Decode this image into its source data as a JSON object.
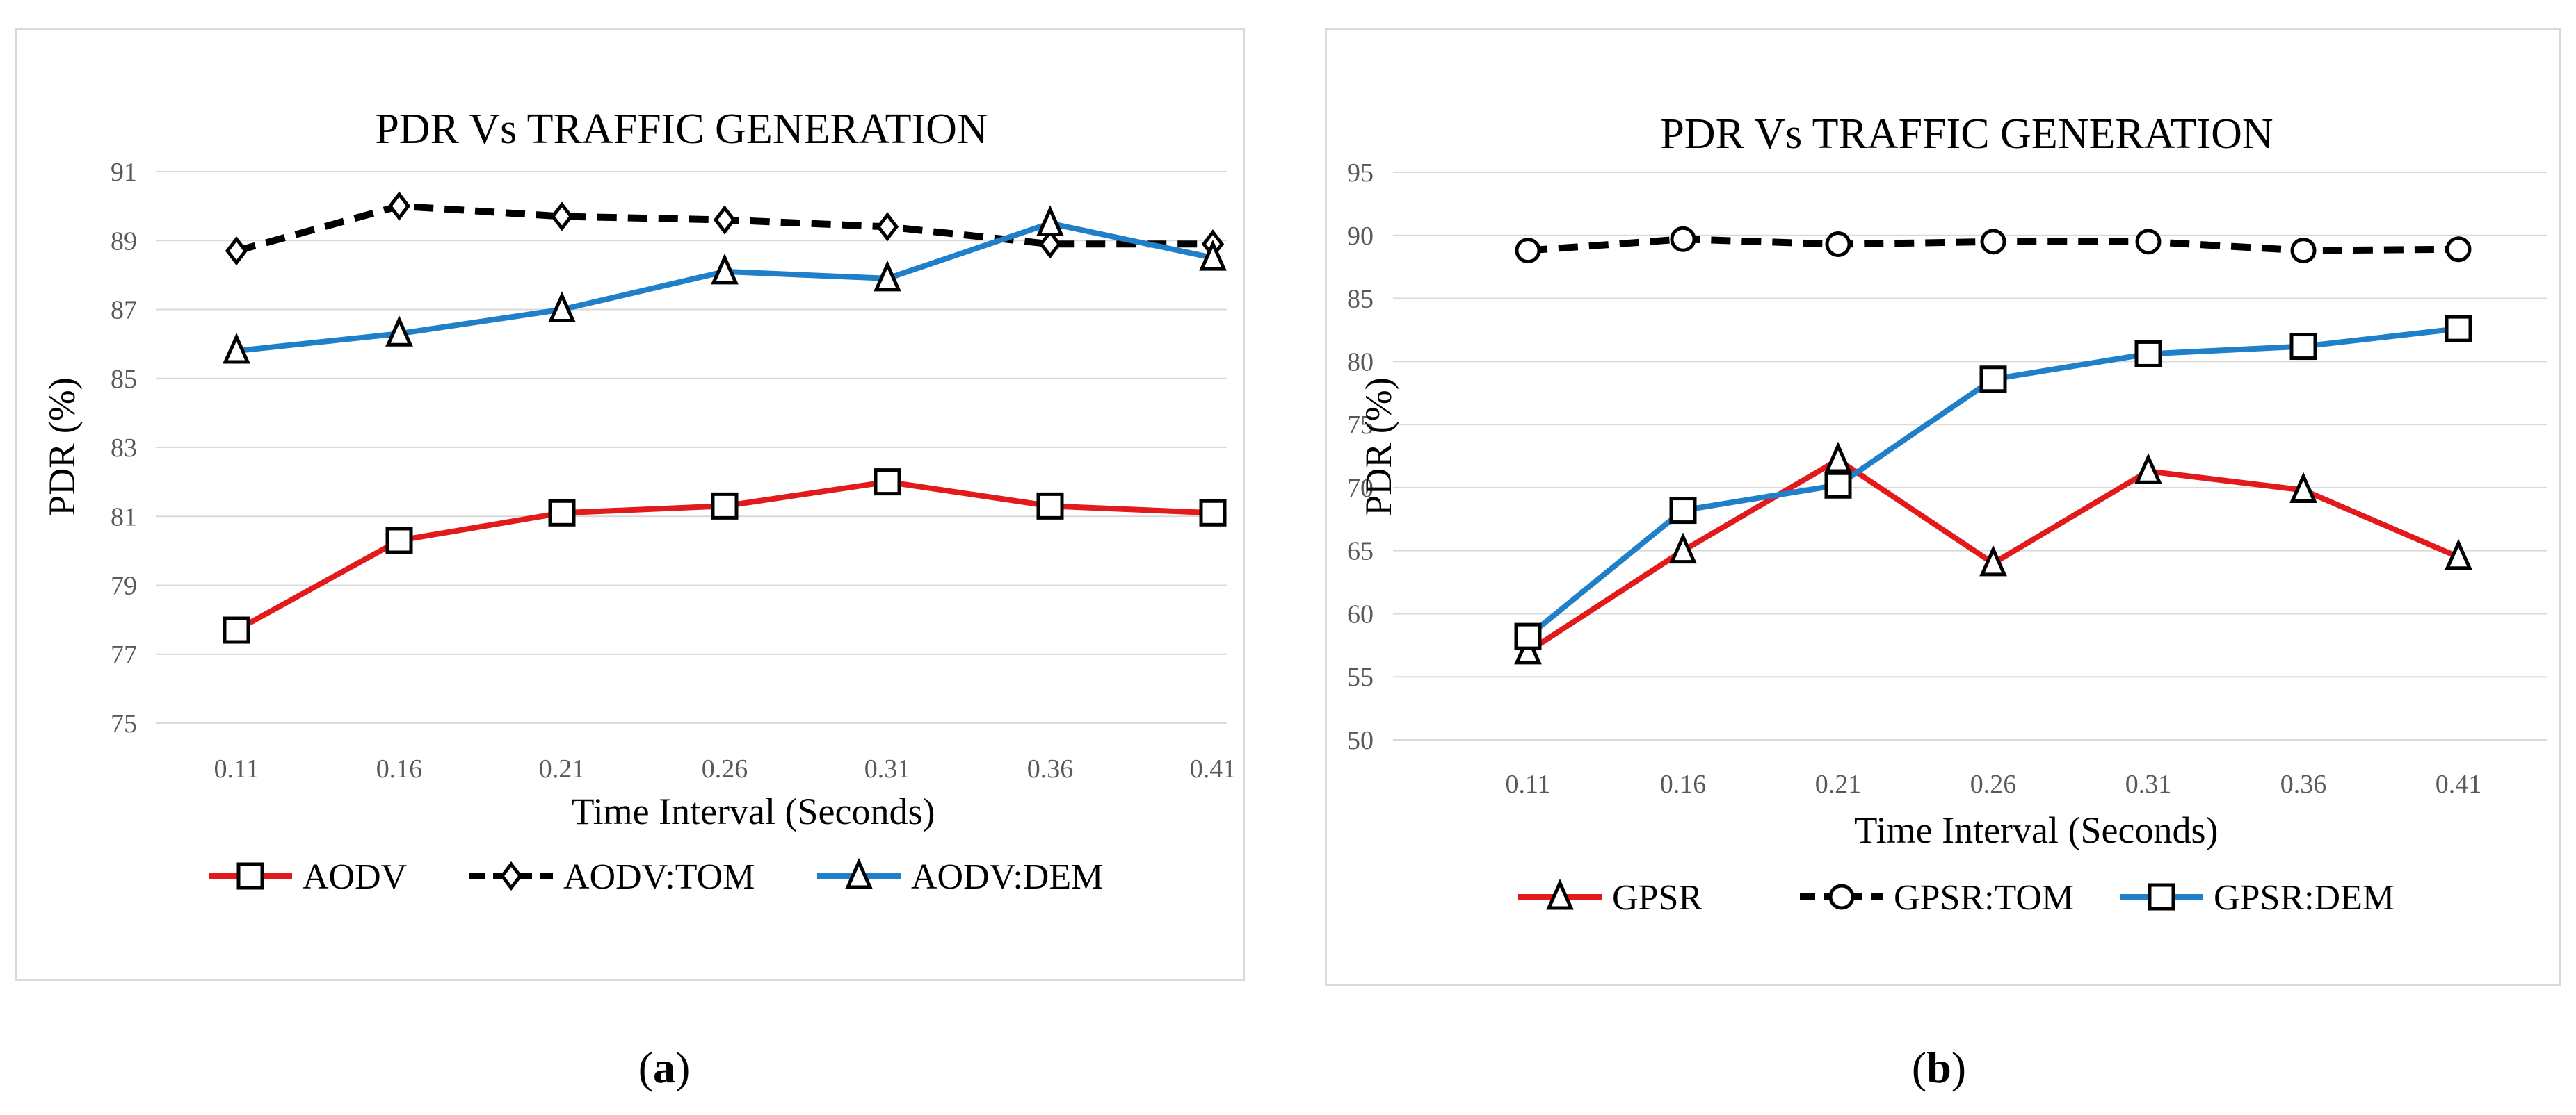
{
  "chart_data": [
    {
      "type": "line",
      "title": "PDR Vs TRAFFIC GENERATION",
      "xlabel": "Time Interval (Seconds)",
      "ylabel": "PDR (%)",
      "categories": [
        "0.11",
        "0.16",
        "0.21",
        "0.26",
        "0.31",
        "0.36",
        "0.41"
      ],
      "ylim": [
        75,
        91
      ],
      "yticks": [
        "75",
        "77",
        "79",
        "81",
        "83",
        "85",
        "87",
        "89",
        "91"
      ],
      "grid": true,
      "legend": "bottom",
      "series": [
        {
          "name": "AODV",
          "color": "#e31a1c",
          "style": "solid",
          "marker": "square",
          "values": [
            77.7,
            80.3,
            81.1,
            81.3,
            82.0,
            81.3,
            81.1
          ]
        },
        {
          "name": "AODV:TOM",
          "color": "#000000",
          "style": "dashed",
          "marker": "diamond",
          "values": [
            88.7,
            90.0,
            89.7,
            89.6,
            89.4,
            88.9,
            88.9
          ]
        },
        {
          "name": "AODV:DEM",
          "color": "#1f7fc8",
          "style": "solid",
          "marker": "triangle",
          "values": [
            85.8,
            86.3,
            87.0,
            88.1,
            87.9,
            89.5,
            88.5
          ]
        }
      ]
    },
    {
      "type": "line",
      "title": "PDR Vs TRAFFIC GENERATION",
      "xlabel": "Time Interval (Seconds)",
      "ylabel": "PDR (%)",
      "categories": [
        "0.11",
        "0.16",
        "0.21",
        "0.26",
        "0.31",
        "0.36",
        "0.41"
      ],
      "ylim": [
        50,
        95
      ],
      "yticks": [
        "50",
        "55",
        "60",
        "65",
        "70",
        "75",
        "80",
        "85",
        "90",
        "95"
      ],
      "grid": true,
      "legend": "bottom",
      "series": [
        {
          "name": "GPSR",
          "color": "#e31a1c",
          "style": "solid",
          "marker": "triangle",
          "values": [
            57.0,
            65.0,
            72.2,
            64.0,
            71.3,
            69.8,
            64.5
          ]
        },
        {
          "name": "GPSR:TOM",
          "color": "#000000",
          "style": "dashed",
          "marker": "circle",
          "values": [
            88.8,
            89.7,
            89.3,
            89.5,
            89.5,
            88.8,
            88.9
          ]
        },
        {
          "name": "GPSR:DEM",
          "color": "#1f7fc8",
          "style": "solid",
          "marker": "square",
          "values": [
            58.2,
            68.2,
            70.2,
            78.6,
            80.6,
            81.2,
            82.6
          ]
        }
      ]
    }
  ],
  "captions": {
    "a": "a",
    "b": "b"
  }
}
